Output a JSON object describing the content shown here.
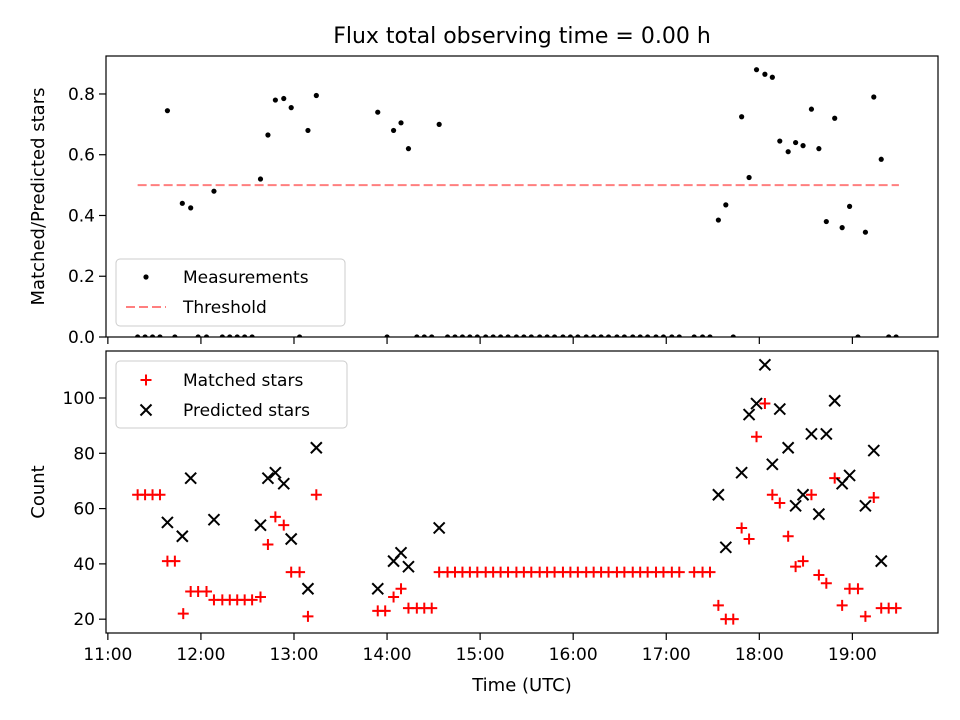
{
  "title": "Flux total observing time = 0.00 h",
  "x_axis": {
    "label": "Time (UTC)",
    "unit": "hours UTC",
    "range": [
      10.98,
      19.92
    ],
    "ticks": [
      11,
      12,
      13,
      14,
      15,
      16,
      17,
      18,
      19
    ],
    "tick_labels": [
      "11:00",
      "12:00",
      "13:00",
      "14:00",
      "15:00",
      "16:00",
      "17:00",
      "18:00",
      "19:00"
    ]
  },
  "chart_data": [
    {
      "type": "scatter",
      "name": "ratio-panel",
      "ylabel": "Matched/Predicted stars",
      "ylim": [
        0,
        0.925
      ],
      "yticks": [
        0.0,
        0.2,
        0.4,
        0.6,
        0.8
      ],
      "ytick_labels": [
        "0.0",
        "0.2",
        "0.4",
        "0.6",
        "0.8"
      ],
      "legend": {
        "position": "lower-left",
        "entries": [
          "Measurements",
          "Threshold"
        ]
      },
      "threshold": {
        "name": "Threshold",
        "value": 0.5,
        "x_range": [
          11.32,
          19.5
        ],
        "color": "#ff7f7f",
        "style": "dashed"
      },
      "series": [
        {
          "name": "Measurements",
          "color": "#000000",
          "points": [
            [
              11.32,
              0
            ],
            [
              11.4,
              0
            ],
            [
              11.48,
              0
            ],
            [
              11.56,
              0
            ],
            [
              11.64,
              0.745
            ],
            [
              11.72,
              0
            ],
            [
              11.8,
              0.44
            ],
            [
              11.89,
              0.425
            ],
            [
              11.97,
              0
            ],
            [
              12.06,
              0
            ],
            [
              12.14,
              0.48
            ],
            [
              12.23,
              0
            ],
            [
              12.31,
              0
            ],
            [
              12.39,
              0
            ],
            [
              12.47,
              0
            ],
            [
              12.55,
              0
            ],
            [
              12.64,
              0.52
            ],
            [
              12.72,
              0.665
            ],
            [
              12.8,
              0.78
            ],
            [
              12.89,
              0.785
            ],
            [
              12.97,
              0.755
            ],
            [
              13.06,
              0
            ],
            [
              13.15,
              0.68
            ],
            [
              13.24,
              0.795
            ],
            [
              13.9,
              0.74
            ],
            [
              14.0,
              0
            ],
            [
              14.07,
              0.68
            ],
            [
              14.15,
              0.705
            ],
            [
              14.23,
              0.62
            ],
            [
              14.32,
              0
            ],
            [
              14.4,
              0
            ],
            [
              14.48,
              0
            ],
            [
              14.56,
              0.7
            ],
            [
              14.65,
              0
            ],
            [
              14.73,
              0
            ],
            [
              14.81,
              0
            ],
            [
              14.89,
              0
            ],
            [
              14.97,
              0
            ],
            [
              15.06,
              0
            ],
            [
              15.14,
              0
            ],
            [
              15.22,
              0
            ],
            [
              15.3,
              0
            ],
            [
              15.39,
              0
            ],
            [
              15.47,
              0
            ],
            [
              15.55,
              0
            ],
            [
              15.64,
              0
            ],
            [
              15.72,
              0
            ],
            [
              15.8,
              0
            ],
            [
              15.89,
              0
            ],
            [
              15.97,
              0
            ],
            [
              16.05,
              0
            ],
            [
              16.14,
              0
            ],
            [
              16.22,
              0
            ],
            [
              16.3,
              0
            ],
            [
              16.38,
              0
            ],
            [
              16.47,
              0
            ],
            [
              16.55,
              0
            ],
            [
              16.64,
              0
            ],
            [
              16.72,
              0
            ],
            [
              16.8,
              0
            ],
            [
              16.89,
              0
            ],
            [
              16.97,
              0
            ],
            [
              17.06,
              0
            ],
            [
              17.14,
              0
            ],
            [
              17.3,
              0
            ],
            [
              17.39,
              0
            ],
            [
              17.47,
              0
            ],
            [
              17.56,
              0.385
            ],
            [
              17.64,
              0.435
            ],
            [
              17.72,
              0
            ],
            [
              17.81,
              0.725
            ],
            [
              17.89,
              0.525
            ],
            [
              17.97,
              0.88
            ],
            [
              18.06,
              0.865
            ],
            [
              18.14,
              0.855
            ],
            [
              18.22,
              0.645
            ],
            [
              18.31,
              0.61
            ],
            [
              18.39,
              0.64
            ],
            [
              18.47,
              0.63
            ],
            [
              18.56,
              0.75
            ],
            [
              18.64,
              0.62
            ],
            [
              18.72,
              0.38
            ],
            [
              18.81,
              0.72
            ],
            [
              18.89,
              0.36
            ],
            [
              18.97,
              0.43
            ],
            [
              19.06,
              0
            ],
            [
              19.14,
              0.345
            ],
            [
              19.23,
              0.79
            ],
            [
              19.31,
              0.585
            ],
            [
              19.39,
              0
            ],
            [
              19.47,
              0
            ]
          ]
        }
      ]
    },
    {
      "type": "scatter",
      "name": "count-panel",
      "ylabel": "Count",
      "ylim": [
        15,
        117
      ],
      "yticks": [
        20,
        40,
        60,
        80,
        100
      ],
      "ytick_labels": [
        "20",
        "40",
        "60",
        "80",
        "100"
      ],
      "legend": {
        "position": "upper-left",
        "entries": [
          "Matched stars",
          "Predicted stars"
        ]
      },
      "series": [
        {
          "name": "Matched stars",
          "marker": "plus",
          "color": "#ff0000",
          "points": [
            [
              11.32,
              65
            ],
            [
              11.4,
              65
            ],
            [
              11.48,
              65
            ],
            [
              11.56,
              65
            ],
            [
              11.64,
              41
            ],
            [
              11.72,
              41
            ],
            [
              11.81,
              22
            ],
            [
              11.89,
              30
            ],
            [
              11.97,
              30
            ],
            [
              12.06,
              30
            ],
            [
              12.14,
              27
            ],
            [
              12.23,
              27
            ],
            [
              12.31,
              27
            ],
            [
              12.39,
              27
            ],
            [
              12.47,
              27
            ],
            [
              12.55,
              27
            ],
            [
              12.64,
              28
            ],
            [
              12.72,
              47
            ],
            [
              12.8,
              57
            ],
            [
              12.89,
              54
            ],
            [
              12.97,
              37
            ],
            [
              13.06,
              37
            ],
            [
              13.15,
              21
            ],
            [
              13.24,
              65
            ],
            [
              13.9,
              23
            ],
            [
              13.98,
              23
            ],
            [
              14.07,
              28
            ],
            [
              14.15,
              31
            ],
            [
              14.23,
              24
            ],
            [
              14.32,
              24
            ],
            [
              14.4,
              24
            ],
            [
              14.48,
              24
            ],
            [
              14.56,
              37
            ],
            [
              14.65,
              37
            ],
            [
              14.73,
              37
            ],
            [
              14.81,
              37
            ],
            [
              14.89,
              37
            ],
            [
              14.97,
              37
            ],
            [
              15.06,
              37
            ],
            [
              15.14,
              37
            ],
            [
              15.22,
              37
            ],
            [
              15.3,
              37
            ],
            [
              15.39,
              37
            ],
            [
              15.47,
              37
            ],
            [
              15.55,
              37
            ],
            [
              15.64,
              37
            ],
            [
              15.72,
              37
            ],
            [
              15.8,
              37
            ],
            [
              15.89,
              37
            ],
            [
              15.97,
              37
            ],
            [
              16.05,
              37
            ],
            [
              16.14,
              37
            ],
            [
              16.22,
              37
            ],
            [
              16.3,
              37
            ],
            [
              16.38,
              37
            ],
            [
              16.47,
              37
            ],
            [
              16.55,
              37
            ],
            [
              16.64,
              37
            ],
            [
              16.72,
              37
            ],
            [
              16.8,
              37
            ],
            [
              16.89,
              37
            ],
            [
              16.97,
              37
            ],
            [
              17.06,
              37
            ],
            [
              17.14,
              37
            ],
            [
              17.3,
              37
            ],
            [
              17.39,
              37
            ],
            [
              17.47,
              37
            ],
            [
              17.56,
              25
            ],
            [
              17.64,
              20
            ],
            [
              17.72,
              20
            ],
            [
              17.81,
              53
            ],
            [
              17.89,
              49
            ],
            [
              17.97,
              86
            ],
            [
              18.06,
              98
            ],
            [
              18.14,
              65
            ],
            [
              18.22,
              62
            ],
            [
              18.31,
              50
            ],
            [
              18.39,
              39
            ],
            [
              18.47,
              41
            ],
            [
              18.56,
              65
            ],
            [
              18.64,
              36
            ],
            [
              18.72,
              33
            ],
            [
              18.81,
              71
            ],
            [
              18.89,
              25
            ],
            [
              18.97,
              31
            ],
            [
              19.06,
              31
            ],
            [
              19.14,
              21
            ],
            [
              19.23,
              64
            ],
            [
              19.31,
              24
            ],
            [
              19.39,
              24
            ],
            [
              19.47,
              24
            ]
          ]
        },
        {
          "name": "Predicted stars",
          "marker": "x",
          "color": "#000000",
          "points": [
            [
              11.64,
              55
            ],
            [
              11.8,
              50
            ],
            [
              11.89,
              71
            ],
            [
              12.14,
              56
            ],
            [
              12.64,
              54
            ],
            [
              12.72,
              71
            ],
            [
              12.8,
              73
            ],
            [
              12.89,
              69
            ],
            [
              12.97,
              49
            ],
            [
              13.15,
              31
            ],
            [
              13.24,
              82
            ],
            [
              13.9,
              31
            ],
            [
              14.07,
              41
            ],
            [
              14.15,
              44
            ],
            [
              14.23,
              39
            ],
            [
              14.56,
              53
            ],
            [
              17.56,
              65
            ],
            [
              17.64,
              46
            ],
            [
              17.81,
              73
            ],
            [
              17.89,
              94
            ],
            [
              17.97,
              98
            ],
            [
              18.06,
              112
            ],
            [
              18.14,
              76
            ],
            [
              18.22,
              96
            ],
            [
              18.31,
              82
            ],
            [
              18.39,
              61
            ],
            [
              18.47,
              65
            ],
            [
              18.56,
              87
            ],
            [
              18.64,
              58
            ],
            [
              18.72,
              87
            ],
            [
              18.81,
              99
            ],
            [
              18.89,
              69
            ],
            [
              18.97,
              72
            ],
            [
              19.14,
              61
            ],
            [
              19.23,
              81
            ],
            [
              19.31,
              41
            ]
          ]
        }
      ]
    }
  ]
}
